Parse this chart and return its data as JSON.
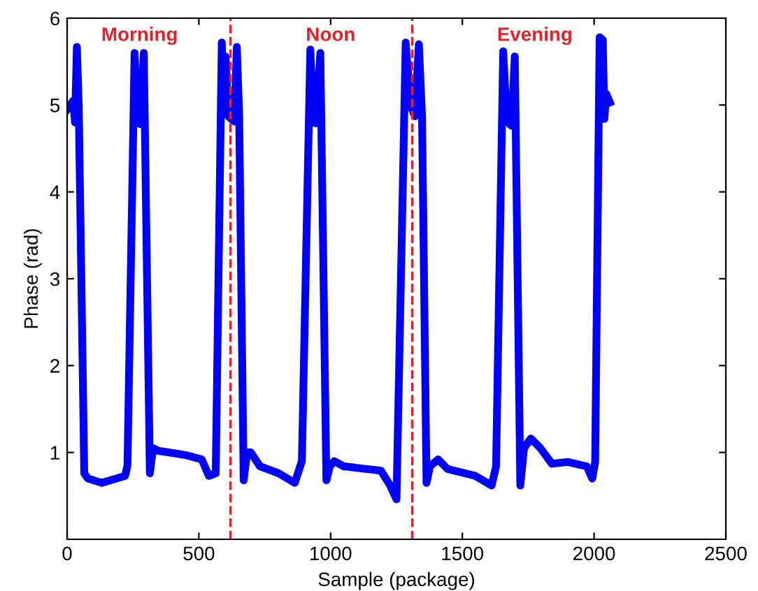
{
  "chart_data": {
    "type": "line",
    "xlabel": "Sample (package)",
    "ylabel": "Phase (rad)",
    "xlim": [
      0,
      2500
    ],
    "xticks": [
      0,
      500,
      1000,
      1500,
      2000,
      2500
    ],
    "ylim": [
      0,
      6
    ],
    "yticks": [
      1,
      2,
      3,
      4,
      5,
      6
    ],
    "grid": false,
    "marker": "none",
    "line_style": "solid",
    "series": [
      {
        "color": "#0000ff",
        "x": [
          0,
          23,
          30,
          37,
          44,
          65,
          79,
          132,
          220,
          229,
          256,
          268,
          279,
          291,
          314,
          326,
          344,
          450,
          511,
          538,
          564,
          587,
          594,
          601,
          612,
          635,
          644,
          653,
          670,
          683,
          697,
          732,
          803,
          864,
          891,
          923,
          935,
          944,
          961,
          984,
          997,
          1014,
          1050,
          1191,
          1226,
          1250,
          1285,
          1303,
          1320,
          1335,
          1347,
          1364,
          1377,
          1408,
          1444,
          1549,
          1611,
          1628,
          1655,
          1669,
          1687,
          1699,
          1720,
          1734,
          1760,
          1796,
          1840,
          1901,
          1972,
          1993,
          2004,
          2021,
          2033,
          2039,
          2046,
          2060
        ],
        "values": [
          4.95,
          5.05,
          4.8,
          5.67,
          5.0,
          0.76,
          0.7,
          0.65,
          0.73,
          0.85,
          5.6,
          4.8,
          4.78,
          5.6,
          0.76,
          1.05,
          1.02,
          0.97,
          0.92,
          0.73,
          0.76,
          5.72,
          4.92,
          5.56,
          4.87,
          4.81,
          5.67,
          4.87,
          0.68,
          1.0,
          1.0,
          0.84,
          0.76,
          0.65,
          0.9,
          5.64,
          4.81,
          4.79,
          5.6,
          0.68,
          0.84,
          0.9,
          0.84,
          0.79,
          0.62,
          0.46,
          5.72,
          5.0,
          4.87,
          5.7,
          4.87,
          0.65,
          0.84,
          0.92,
          0.81,
          0.73,
          0.62,
          0.84,
          5.62,
          4.81,
          4.76,
          5.56,
          0.62,
          1.05,
          1.16,
          1.05,
          0.87,
          0.89,
          0.84,
          0.7,
          0.89,
          5.78,
          5.75,
          4.84,
          5.13,
          5.03
        ]
      }
    ],
    "ref_lines": [
      {
        "axis": "x",
        "value": 620,
        "color": "#e8202a",
        "line_style": "dashed"
      },
      {
        "axis": "x",
        "value": 1310,
        "color": "#e8202a",
        "line_style": "dashed"
      }
    ],
    "annotations": [
      "Morning",
      "Noon",
      "Evening"
    ]
  }
}
